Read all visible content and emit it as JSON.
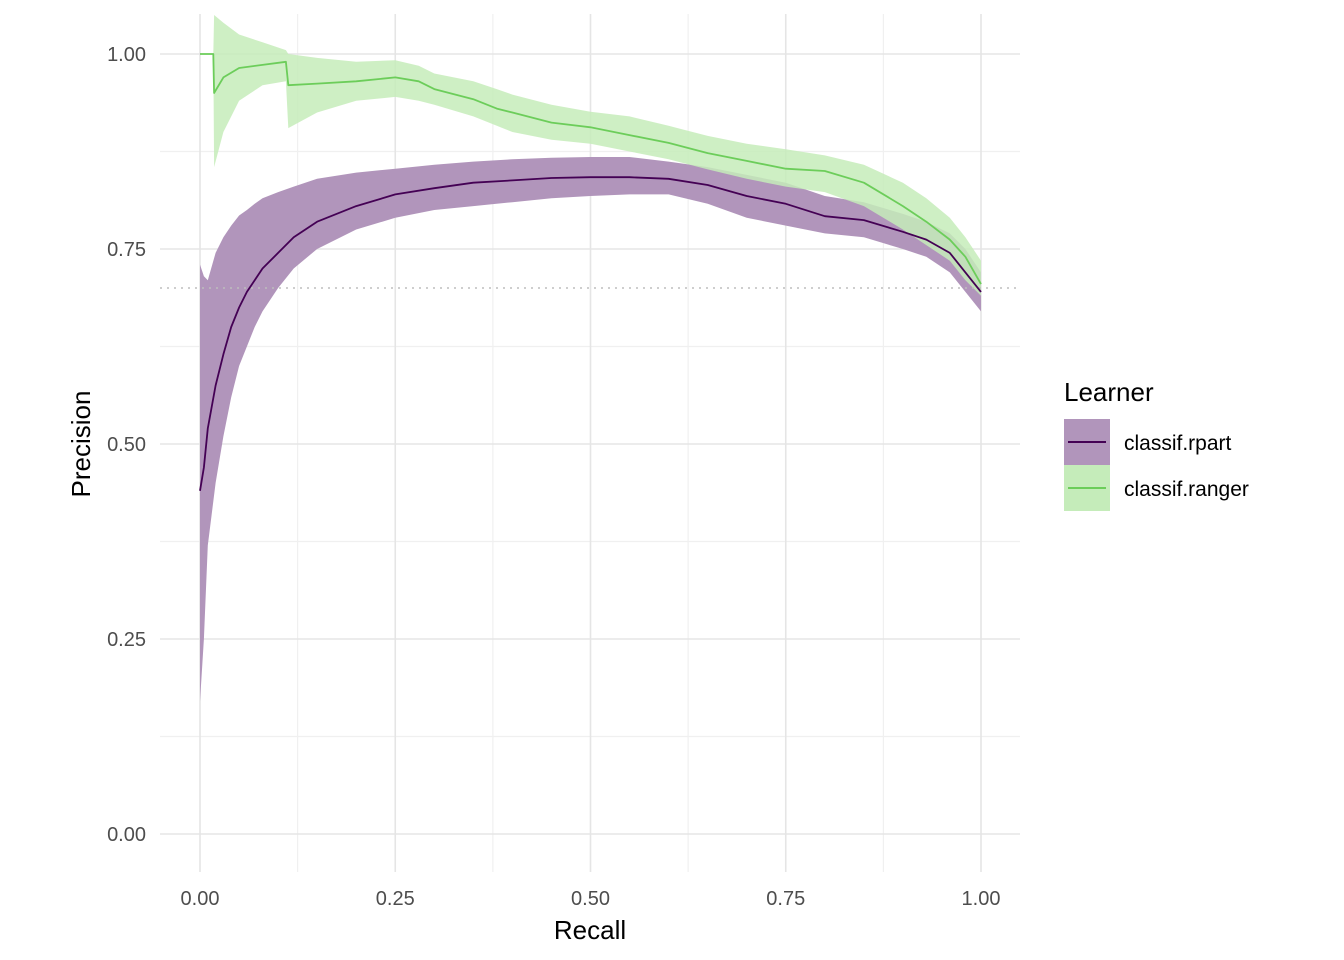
{
  "chart_data": {
    "type": "line",
    "title": "",
    "xlabel": "Recall",
    "ylabel": "Precision",
    "xlim": [
      0,
      1
    ],
    "ylim": [
      0,
      1
    ],
    "x_ticks": [
      0,
      0.25,
      0.5,
      0.75,
      1
    ],
    "x_tick_labels": [
      "0.00",
      "0.25",
      "0.50",
      "0.75",
      "1.00"
    ],
    "y_ticks": [
      0,
      0.25,
      0.5,
      0.75,
      1
    ],
    "y_tick_labels": [
      "0.00",
      "0.25",
      "0.50",
      "0.75",
      "1.00"
    ],
    "grid": true,
    "reference_line": {
      "y": 0.7,
      "style": "dotted",
      "color": "#bdbdbd"
    },
    "legend": {
      "title": "Learner",
      "position": "right"
    },
    "series": [
      {
        "name": "classif.rpart",
        "color": "#440154",
        "band_color": "#b195bb",
        "x": [
          0.0,
          0.005,
          0.01,
          0.02,
          0.03,
          0.04,
          0.05,
          0.06,
          0.07,
          0.08,
          0.1,
          0.12,
          0.15,
          0.2,
          0.25,
          0.3,
          0.35,
          0.4,
          0.45,
          0.5,
          0.55,
          0.6,
          0.65,
          0.7,
          0.75,
          0.8,
          0.85,
          0.9,
          0.93,
          0.96,
          0.98,
          1.0
        ],
        "y": [
          0.44,
          0.47,
          0.52,
          0.575,
          0.615,
          0.65,
          0.675,
          0.695,
          0.71,
          0.725,
          0.745,
          0.765,
          0.785,
          0.805,
          0.82,
          0.828,
          0.835,
          0.838,
          0.841,
          0.842,
          0.842,
          0.84,
          0.832,
          0.818,
          0.808,
          0.792,
          0.787,
          0.772,
          0.762,
          0.745,
          0.72,
          0.695
        ],
        "lower": [
          0.17,
          0.25,
          0.37,
          0.45,
          0.51,
          0.56,
          0.6,
          0.625,
          0.65,
          0.67,
          0.7,
          0.725,
          0.75,
          0.775,
          0.79,
          0.8,
          0.805,
          0.81,
          0.815,
          0.818,
          0.82,
          0.82,
          0.808,
          0.79,
          0.78,
          0.77,
          0.765,
          0.75,
          0.74,
          0.72,
          0.695,
          0.67
        ],
        "upper": [
          0.73,
          0.715,
          0.71,
          0.745,
          0.765,
          0.78,
          0.793,
          0.8,
          0.808,
          0.815,
          0.823,
          0.83,
          0.84,
          0.848,
          0.853,
          0.858,
          0.862,
          0.865,
          0.867,
          0.868,
          0.868,
          0.862,
          0.855,
          0.845,
          0.835,
          0.818,
          0.81,
          0.795,
          0.785,
          0.77,
          0.75,
          0.72
        ]
      },
      {
        "name": "classif.ranger",
        "color": "#6ccd5a",
        "band_color": "#c5ecba",
        "x": [
          0.0,
          0.017,
          0.018,
          0.03,
          0.05,
          0.08,
          0.11,
          0.113,
          0.15,
          0.2,
          0.25,
          0.28,
          0.3,
          0.35,
          0.38,
          0.4,
          0.45,
          0.5,
          0.55,
          0.6,
          0.65,
          0.7,
          0.75,
          0.8,
          0.85,
          0.9,
          0.93,
          0.96,
          0.98,
          1.0
        ],
        "y": [
          1.0,
          1.0,
          0.95,
          0.97,
          0.982,
          0.986,
          0.99,
          0.96,
          0.962,
          0.965,
          0.97,
          0.965,
          0.955,
          0.942,
          0.93,
          0.925,
          0.912,
          0.906,
          0.896,
          0.886,
          0.873,
          0.863,
          0.853,
          0.85,
          0.835,
          0.805,
          0.785,
          0.762,
          0.74,
          0.705
        ],
        "lower": [
          1.0,
          1.0,
          0.855,
          0.9,
          0.94,
          0.96,
          0.965,
          0.905,
          0.925,
          0.94,
          0.945,
          0.94,
          0.935,
          0.92,
          0.908,
          0.9,
          0.89,
          0.885,
          0.875,
          0.865,
          0.852,
          0.84,
          0.83,
          0.823,
          0.805,
          0.775,
          0.755,
          0.735,
          0.71,
          0.69
        ],
        "upper": [
          1.0,
          1.0,
          1.05,
          1.04,
          1.025,
          1.015,
          1.005,
          1.0,
          0.995,
          0.99,
          0.992,
          0.985,
          0.975,
          0.965,
          0.955,
          0.948,
          0.935,
          0.926,
          0.92,
          0.908,
          0.895,
          0.885,
          0.878,
          0.87,
          0.858,
          0.835,
          0.815,
          0.79,
          0.765,
          0.735
        ]
      }
    ]
  }
}
